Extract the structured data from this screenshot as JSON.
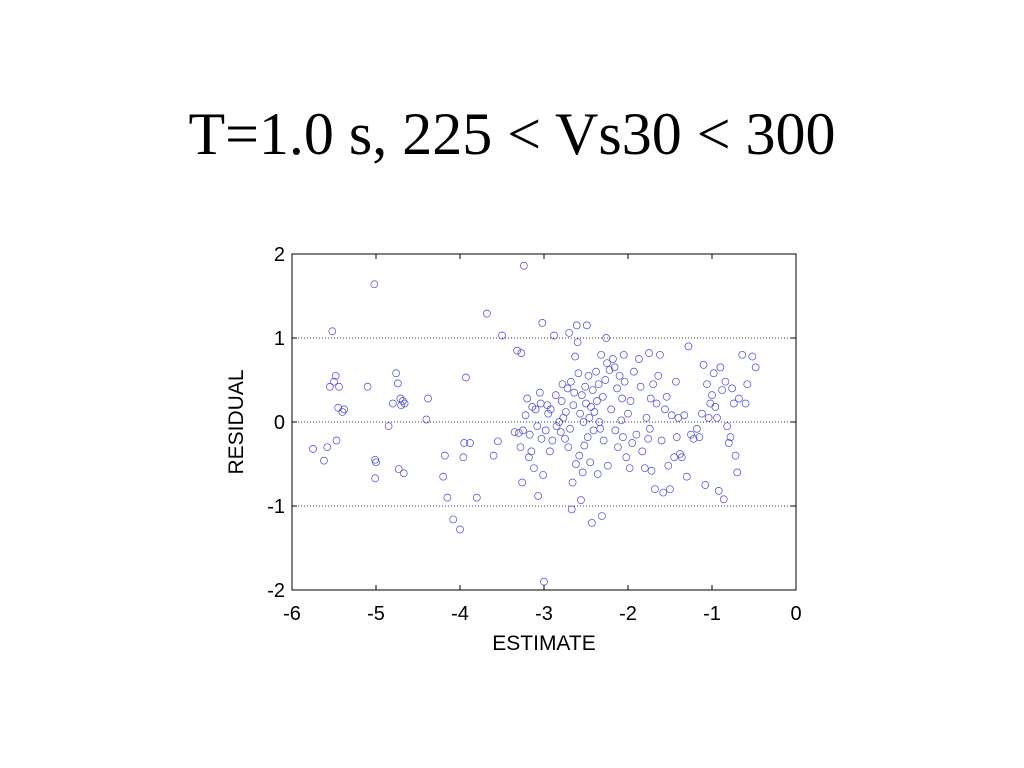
{
  "title": "T=1.0 s, 225 < Vs30 < 300",
  "chart_data": {
    "type": "scatter",
    "xlabel": "ESTIMATE",
    "ylabel": "RESIDUAL",
    "xlim": [
      -6,
      0
    ],
    "ylim": [
      -2,
      2
    ],
    "xticks": [
      "-6",
      "-5",
      "-4",
      "-3",
      "-2",
      "-1",
      "0"
    ],
    "yticks": [
      "2",
      "1",
      "0",
      "-1",
      "-2"
    ],
    "grid": "horizontal dotted at y = -1, 0, 1",
    "marker": "hollow circle",
    "marker_color": "#4646d8",
    "points": [
      [
        -5.75,
        -0.32
      ],
      [
        -5.62,
        -0.46
      ],
      [
        -5.58,
        -0.3
      ],
      [
        -5.55,
        0.42
      ],
      [
        -5.52,
        1.08
      ],
      [
        -5.5,
        0.48
      ],
      [
        -5.48,
        0.55
      ],
      [
        -5.47,
        -0.22
      ],
      [
        -5.45,
        0.17
      ],
      [
        -5.44,
        0.42
      ],
      [
        -5.4,
        0.12
      ],
      [
        -5.38,
        0.15
      ],
      [
        -5.1,
        0.42
      ],
      [
        -5.02,
        1.64
      ],
      [
        -5.01,
        -0.45
      ],
      [
        -5.0,
        -0.48
      ],
      [
        -5.01,
        -0.67
      ],
      [
        -4.85,
        -0.05
      ],
      [
        -4.8,
        0.22
      ],
      [
        -4.76,
        0.58
      ],
      [
        -4.74,
        0.46
      ],
      [
        -4.73,
        -0.56
      ],
      [
        -4.71,
        0.28
      ],
      [
        -4.7,
        0.2
      ],
      [
        -4.68,
        0.25
      ],
      [
        -4.67,
        -0.61
      ],
      [
        -4.66,
        0.22
      ],
      [
        -4.38,
        0.28
      ],
      [
        -4.4,
        0.03
      ],
      [
        -4.2,
        -0.65
      ],
      [
        -4.18,
        -0.4
      ],
      [
        -4.15,
        -0.9
      ],
      [
        -4.08,
        -1.16
      ],
      [
        -4.0,
        -1.28
      ],
      [
        -3.95,
        -0.25
      ],
      [
        -3.96,
        -0.42
      ],
      [
        -3.93,
        0.53
      ],
      [
        -3.88,
        -0.25
      ],
      [
        -3.8,
        -0.9
      ],
      [
        -3.68,
        1.29
      ],
      [
        -3.6,
        -0.4
      ],
      [
        -3.55,
        -0.23
      ],
      [
        -3.5,
        1.03
      ],
      [
        -3.35,
        -0.12
      ],
      [
        -3.32,
        0.85
      ],
      [
        -3.3,
        -0.13
      ],
      [
        -3.28,
        -0.3
      ],
      [
        -3.27,
        0.82
      ],
      [
        -3.25,
        -0.1
      ],
      [
        -3.26,
        -0.72
      ],
      [
        -3.24,
        1.86
      ],
      [
        -3.22,
        0.08
      ],
      [
        -3.2,
        0.28
      ],
      [
        -3.18,
        -0.42
      ],
      [
        -3.17,
        -0.15
      ],
      [
        -3.15,
        -0.35
      ],
      [
        -3.14,
        0.18
      ],
      [
        -3.12,
        -0.55
      ],
      [
        -3.1,
        0.15
      ],
      [
        -3.08,
        -0.05
      ],
      [
        -3.07,
        -0.88
      ],
      [
        -3.05,
        0.35
      ],
      [
        -3.04,
        0.22
      ],
      [
        -3.03,
        -0.2
      ],
      [
        -3.02,
        1.18
      ],
      [
        -3.01,
        -0.63
      ],
      [
        -3.0,
        -1.9
      ],
      [
        -2.98,
        -0.1
      ],
      [
        -2.96,
        0.2
      ],
      [
        -2.95,
        0.1
      ],
      [
        -2.93,
        -0.35
      ],
      [
        -2.92,
        0.15
      ],
      [
        -2.9,
        -0.22
      ],
      [
        -2.88,
        1.03
      ],
      [
        -2.86,
        0.32
      ],
      [
        -2.85,
        -0.05
      ],
      [
        -2.82,
        0.0
      ],
      [
        -2.8,
        -0.12
      ],
      [
        -2.79,
        0.25
      ],
      [
        -2.78,
        0.45
      ],
      [
        -2.77,
        0.05
      ],
      [
        -2.75,
        -0.2
      ],
      [
        -2.74,
        0.12
      ],
      [
        -2.72,
        0.4
      ],
      [
        -2.71,
        -0.3
      ],
      [
        -2.7,
        1.06
      ],
      [
        -2.69,
        -0.08
      ],
      [
        -2.68,
        0.48
      ],
      [
        -2.67,
        -1.04
      ],
      [
        -2.66,
        -0.72
      ],
      [
        -2.65,
        0.2
      ],
      [
        -2.64,
        0.35
      ],
      [
        -2.63,
        0.78
      ],
      [
        -2.62,
        -0.5
      ],
      [
        -2.61,
        1.15
      ],
      [
        -2.6,
        0.95
      ],
      [
        -2.59,
        0.58
      ],
      [
        -2.58,
        -0.4
      ],
      [
        -2.57,
        0.1
      ],
      [
        -2.56,
        -0.93
      ],
      [
        -2.55,
        0.32
      ],
      [
        -2.54,
        -0.6
      ],
      [
        -2.53,
        0.0
      ],
      [
        -2.52,
        -0.28
      ],
      [
        -2.51,
        0.42
      ],
      [
        -2.5,
        0.22
      ],
      [
        -2.49,
        1.15
      ],
      [
        -2.48,
        -0.18
      ],
      [
        -2.47,
        0.55
      ],
      [
        -2.46,
        0.05
      ],
      [
        -2.45,
        -0.48
      ],
      [
        -2.44,
        0.18
      ],
      [
        -2.43,
        -1.2
      ],
      [
        -2.42,
        0.38
      ],
      [
        -2.41,
        -0.1
      ],
      [
        -2.4,
        0.12
      ],
      [
        -2.38,
        0.6
      ],
      [
        -2.37,
        0.25
      ],
      [
        -2.36,
        -0.62
      ],
      [
        -2.35,
        0.45
      ],
      [
        -2.34,
        0.0
      ],
      [
        -2.33,
        -0.08
      ],
      [
        -2.32,
        0.8
      ],
      [
        -2.31,
        -1.12
      ],
      [
        -2.3,
        0.3
      ],
      [
        -2.29,
        -0.22
      ],
      [
        -2.27,
        0.5
      ],
      [
        -2.26,
        1.0
      ],
      [
        -2.25,
        0.7
      ],
      [
        -2.24,
        -0.52
      ],
      [
        -2.22,
        0.62
      ],
      [
        -2.2,
        0.15
      ],
      [
        -2.18,
        0.75
      ],
      [
        -2.16,
        0.65
      ],
      [
        -2.15,
        -0.1
      ],
      [
        -2.13,
        0.4
      ],
      [
        -2.12,
        -0.3
      ],
      [
        -2.1,
        0.55
      ],
      [
        -2.08,
        0.02
      ],
      [
        -2.07,
        0.28
      ],
      [
        -2.06,
        -0.18
      ],
      [
        -2.05,
        0.8
      ],
      [
        -2.04,
        0.48
      ],
      [
        -2.02,
        -0.42
      ],
      [
        -2.0,
        0.1
      ],
      [
        -1.98,
        -0.55
      ],
      [
        -1.97,
        0.25
      ],
      [
        -1.95,
        -0.25
      ],
      [
        -1.93,
        0.6
      ],
      [
        -1.9,
        -0.15
      ],
      [
        -1.87,
        0.75
      ],
      [
        -1.85,
        0.42
      ],
      [
        -1.83,
        -0.35
      ],
      [
        -1.8,
        -0.55
      ],
      [
        -1.78,
        0.05
      ],
      [
        -1.76,
        -0.2
      ],
      [
        -1.75,
        0.82
      ],
      [
        -1.74,
        -0.08
      ],
      [
        -1.73,
        0.28
      ],
      [
        -1.72,
        -0.58
      ],
      [
        -1.7,
        0.45
      ],
      [
        -1.68,
        -0.8
      ],
      [
        -1.66,
        0.22
      ],
      [
        -1.64,
        0.55
      ],
      [
        -1.62,
        0.8
      ],
      [
        -1.6,
        -0.22
      ],
      [
        -1.58,
        -0.84
      ],
      [
        -1.56,
        0.15
      ],
      [
        -1.54,
        0.3
      ],
      [
        -1.52,
        -0.52
      ],
      [
        -1.5,
        -0.8
      ],
      [
        -1.48,
        0.08
      ],
      [
        -1.45,
        -0.42
      ],
      [
        -1.43,
        0.48
      ],
      [
        -1.42,
        -0.18
      ],
      [
        -1.4,
        0.05
      ],
      [
        -1.38,
        -0.38
      ],
      [
        -1.36,
        -0.42
      ],
      [
        -1.33,
        0.08
      ],
      [
        -1.3,
        -0.65
      ],
      [
        -1.28,
        0.9
      ],
      [
        -1.25,
        -0.15
      ],
      [
        -1.22,
        -0.2
      ],
      [
        -1.18,
        -0.08
      ],
      [
        -1.15,
        -0.18
      ],
      [
        -1.12,
        0.1
      ],
      [
        -1.1,
        0.68
      ],
      [
        -1.08,
        -0.75
      ],
      [
        -1.06,
        0.45
      ],
      [
        -1.04,
        0.05
      ],
      [
        -1.02,
        0.22
      ],
      [
        -1.0,
        0.32
      ],
      [
        -0.98,
        0.58
      ],
      [
        -0.96,
        0.18
      ],
      [
        -0.94,
        0.05
      ],
      [
        -0.92,
        -0.82
      ],
      [
        -0.9,
        0.65
      ],
      [
        -0.88,
        0.38
      ],
      [
        -0.86,
        -0.92
      ],
      [
        -0.84,
        0.48
      ],
      [
        -0.82,
        -0.05
      ],
      [
        -0.8,
        -0.25
      ],
      [
        -0.78,
        -0.18
      ],
      [
        -0.76,
        0.4
      ],
      [
        -0.74,
        0.22
      ],
      [
        -0.72,
        -0.4
      ],
      [
        -0.7,
        -0.6
      ],
      [
        -0.68,
        0.28
      ],
      [
        -0.64,
        0.8
      ],
      [
        -0.6,
        0.22
      ],
      [
        -0.58,
        0.45
      ],
      [
        -0.52,
        0.78
      ],
      [
        -0.48,
        0.65
      ]
    ]
  }
}
